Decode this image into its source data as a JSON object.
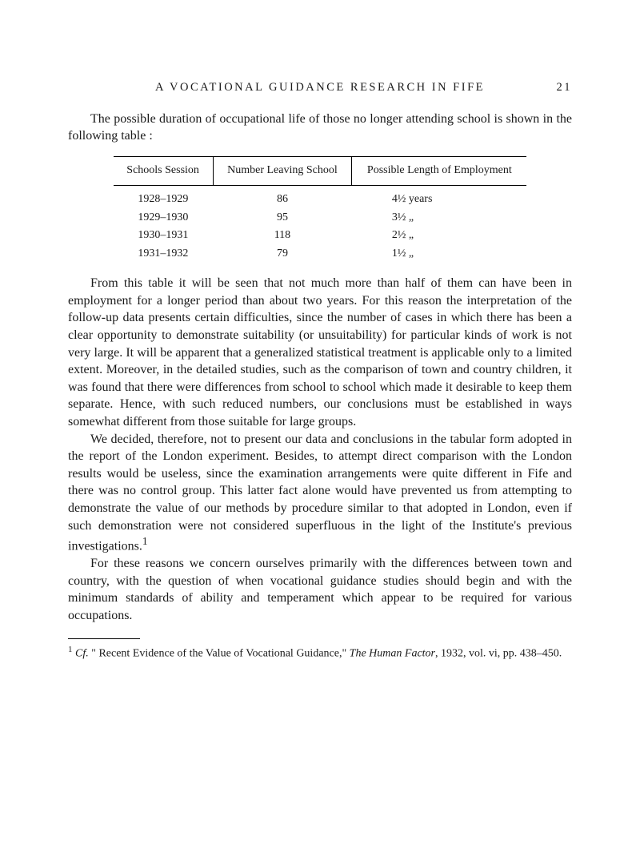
{
  "header": {
    "running_title": "A VOCATIONAL GUIDANCE RESEARCH IN FIFE",
    "page_number": "21"
  },
  "intro": "The possible duration of occupational life of those no longer attending school is shown in the following table :",
  "table": {
    "headers": {
      "col1": "Schools Session",
      "col2": "Number Leaving School",
      "col3": "Possible Length of Employment"
    },
    "rows": [
      {
        "session": "1928–1929",
        "number": "86",
        "length": "4½ years"
      },
      {
        "session": "1929–1930",
        "number": "95",
        "length": "3½    „"
      },
      {
        "session": "1930–1931",
        "number": "118",
        "length": "2½    „"
      },
      {
        "session": "1931–1932",
        "number": "79",
        "length": "1½    „"
      }
    ]
  },
  "para1": "From this table it will be seen that not much more than half of them can have been in employment for a longer period than about two years. For this reason the interpretation of the follow-up data presents certain difficulties, since the number of cases in which there has been a clear opportunity to demonstrate suitability (or unsuitability) for particular kinds of work is not very large. It will be apparent that a generalized statistical treatment is applicable only to a limited extent. Moreover, in the detailed studies, such as the comparison of town and country children, it was found that there were differences from school to school which made it desirable to keep them separate. Hence, with such reduced numbers, our conclusions must be established in ways somewhat different from those suitable for large groups.",
  "para2_a": "We decided, therefore, not to present our data and conclusions in the tabular form adopted in the report of the London experiment. Besides, to attempt direct comparison with the London results would be useless, since the examination arrangements were quite different in Fife and there was no control group. This latter fact alone would have prevented us from attempting to demonstrate the value of our methods by procedure similar to that adopted in London, even if such demonstration were not considered superfluous in the light of the Institute's previous investigations.",
  "para2_sup": "1",
  "para3": "For these reasons we concern ourselves primarily with the differences between town and country, with the question of when vocational guidance studies should begin and with the minimum standards of ability and temperament which appear to be required for various occupations.",
  "footnote": {
    "marker": "1",
    "text_a": "Cf.",
    "text_b": " \" Recent Evidence of the Value of Vocational Guidance,\" ",
    "text_c": "The Human Factor",
    "text_d": ", 1932, vol. vi, pp. 438–450."
  }
}
